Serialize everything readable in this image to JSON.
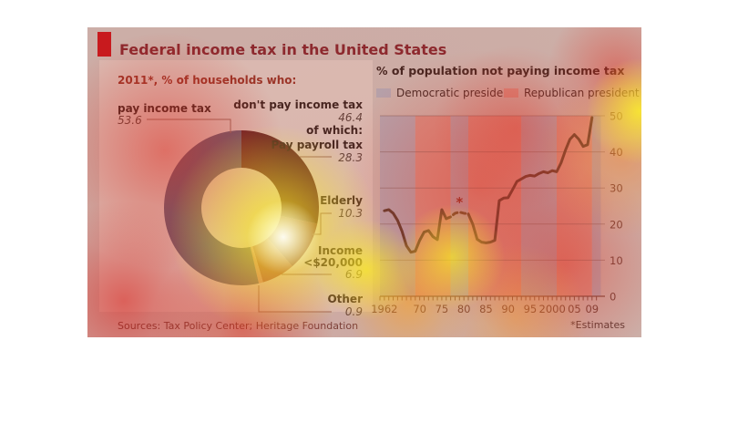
{
  "header": {
    "title": "Federal income tax in the United States",
    "accent_color": "#c4121a"
  },
  "footer": {
    "sources": "Sources: Tax Policy Center; Heritage Foundation",
    "note": "*Estimates"
  },
  "chart_data": [
    {
      "type": "pie",
      "subtype": "donut",
      "title": "2011*, % of households who:",
      "slices": [
        {
          "label": "Pay payroll tax",
          "value": 28.3,
          "color": "#4e2127",
          "group": "don't pay income tax"
        },
        {
          "label": "Elderly",
          "value": 10.3,
          "color": "#733339",
          "group": "don't pay income tax"
        },
        {
          "label": "Income <$20,000",
          "label_lines": [
            "Income",
            "<$20,000"
          ],
          "value": 6.9,
          "color": "#9d564d",
          "group": "don't pay income tax"
        },
        {
          "label": "Other",
          "value": 0.9,
          "color": "#c9948a",
          "group": "don't pay income tax"
        },
        {
          "label": "pay income tax",
          "value": 53.6,
          "color": "#56617a",
          "group": "pay income tax"
        }
      ],
      "annotations": {
        "dont_pay_label": "don't pay income tax",
        "dont_pay_value": "46.4",
        "of_which": "of which:"
      }
    },
    {
      "type": "line",
      "title": "% of population not paying income tax",
      "legend": [
        {
          "label": "Democratic president",
          "color": "#aeb9c8"
        },
        {
          "label": "Republican president",
          "color": "#d7a096"
        }
      ],
      "xlim": [
        1961,
        2011
      ],
      "ylim": [
        0,
        50
      ],
      "yticks": [
        0,
        10,
        20,
        30,
        40,
        50
      ],
      "xticks": [
        {
          "year": 1962,
          "label": "1962"
        },
        {
          "year": 1970,
          "label": "70"
        },
        {
          "year": 1975,
          "label": "75"
        },
        {
          "year": 1980,
          "label": "80"
        },
        {
          "year": 1985,
          "label": "85"
        },
        {
          "year": 1990,
          "label": "90"
        },
        {
          "year": 1995,
          "label": "95"
        },
        {
          "year": 2000,
          "label": "2000"
        },
        {
          "year": 2005,
          "label": "05"
        },
        {
          "year": 2009,
          "label": "09"
        }
      ],
      "bands": [
        {
          "party": "Democratic",
          "from": 1961,
          "to": 1969
        },
        {
          "party": "Republican",
          "from": 1969,
          "to": 1977
        },
        {
          "party": "Democratic",
          "from": 1977,
          "to": 1981
        },
        {
          "party": "Republican",
          "from": 1981,
          "to": 1993
        },
        {
          "party": "Democratic",
          "from": 1993,
          "to": 2001
        },
        {
          "party": "Republican",
          "from": 2001,
          "to": 2009
        },
        {
          "party": "Democratic",
          "from": 2009,
          "to": 2011
        }
      ],
      "line_color": "#463c2e",
      "dashed_segment": [
        1976,
        1981
      ],
      "estimate_marker": {
        "year": 1979,
        "value": 26,
        "symbol": "*"
      },
      "series": [
        {
          "name": "% of population not paying income tax",
          "points": [
            [
              1962,
              23.7
            ],
            [
              1963,
              24.0
            ],
            [
              1964,
              23.0
            ],
            [
              1965,
              21.0
            ],
            [
              1966,
              18.0
            ],
            [
              1967,
              14.0
            ],
            [
              1968,
              12.2
            ],
            [
              1969,
              12.5
            ],
            [
              1970,
              15.5
            ],
            [
              1971,
              17.8
            ],
            [
              1972,
              18.2
            ],
            [
              1973,
              16.5
            ],
            [
              1974,
              15.7
            ],
            [
              1975,
              24.0
            ],
            [
              1976,
              21.5
            ],
            [
              1977,
              22.0
            ],
            [
              1978,
              23.0
            ],
            [
              1979,
              23.3
            ],
            [
              1980,
              23.0
            ],
            [
              1981,
              22.8
            ],
            [
              1982,
              20.0
            ],
            [
              1983,
              15.8
            ],
            [
              1984,
              15.0
            ],
            [
              1985,
              14.8
            ],
            [
              1986,
              15.0
            ],
            [
              1987,
              15.5
            ],
            [
              1988,
              26.5
            ],
            [
              1989,
              27.2
            ],
            [
              1990,
              27.3
            ],
            [
              1991,
              29.5
            ],
            [
              1992,
              31.8
            ],
            [
              1993,
              32.5
            ],
            [
              1994,
              33.2
            ],
            [
              1995,
              33.5
            ],
            [
              1996,
              33.3
            ],
            [
              1997,
              34.0
            ],
            [
              1998,
              34.5
            ],
            [
              1999,
              34.2
            ],
            [
              2000,
              34.8
            ],
            [
              2001,
              34.5
            ],
            [
              2002,
              37.0
            ],
            [
              2003,
              40.5
            ],
            [
              2004,
              43.5
            ],
            [
              2005,
              44.8
            ],
            [
              2006,
              43.5
            ],
            [
              2007,
              41.5
            ],
            [
              2008,
              42.0
            ],
            [
              2009,
              49.5
            ]
          ]
        }
      ]
    }
  ]
}
